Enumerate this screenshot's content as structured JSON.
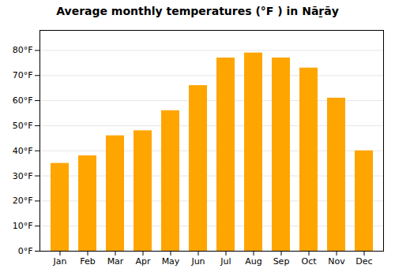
{
  "chart_data": {
    "type": "bar",
    "title": "Average monthly temperatures (°F ) in Nāṟāy",
    "categories": [
      "Jan",
      "Feb",
      "Mar",
      "Apr",
      "May",
      "Jun",
      "Jul",
      "Aug",
      "Sep",
      "Oct",
      "Nov",
      "Dec"
    ],
    "values": [
      35,
      38,
      46,
      48,
      56,
      66,
      77,
      79,
      77,
      73,
      61,
      40
    ],
    "color": "#FFA500",
    "ylim": [
      0,
      88
    ],
    "yticks": [
      {
        "value": 0,
        "label": "0°F"
      },
      {
        "value": 10,
        "label": "10°F"
      },
      {
        "value": 20,
        "label": "20°F"
      },
      {
        "value": 30,
        "label": "30°F"
      },
      {
        "value": 40,
        "label": "40°F"
      },
      {
        "value": 50,
        "label": "50°F"
      },
      {
        "value": 60,
        "label": "60°F"
      },
      {
        "value": 70,
        "label": "70°F"
      },
      {
        "value": 80,
        "label": "80°F"
      }
    ],
    "grid": true
  }
}
